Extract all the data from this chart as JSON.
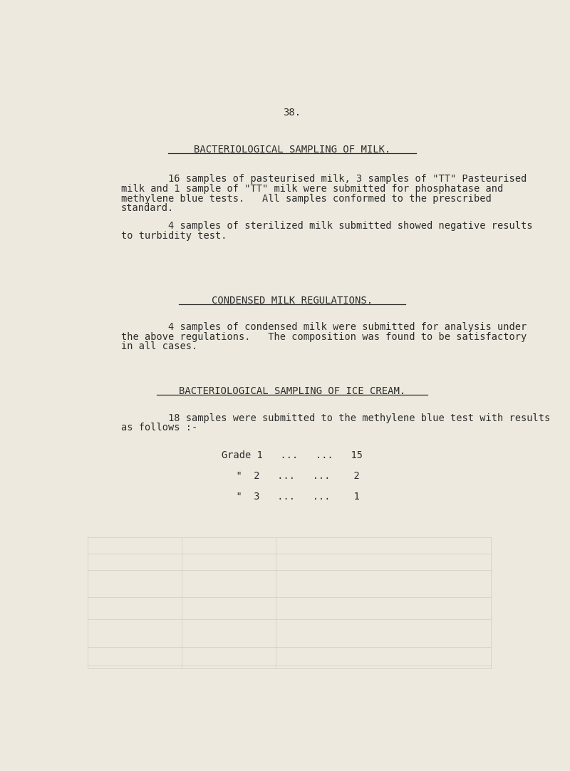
{
  "page_number": "38.",
  "background_color": "#ede9de",
  "text_color": "#2c2c2c",
  "ghost_color": "#c8c4b8",
  "section1_title": "BACTERIOLOGICAL SAMPLING OF MILK.",
  "section1_para1_indent": "        16 samples of pasteurised milk, 3 samples of \"TT\" Pasteurised",
  "section1_para1_rest": [
    "milk and 1 sample of \"TT\" milk were submitted for phosphatase and",
    "methylene blue tests.   All samples conformed to the prescribed",
    "standard."
  ],
  "section1_para2_indent": "        4 samples of sterilized milk submitted showed negative results",
  "section1_para2_rest": [
    "to turbidity test."
  ],
  "section2_title": "CONDENSED MILK REGULATIONS.",
  "section2_para1_indent": "        4 samples of condensed milk were submitted for analysis under",
  "section2_para1_rest": [
    "the above regulations.   The composition was found to be satisfactory",
    "in all cases."
  ],
  "section3_title": "BACTERIOLOGICAL SAMPLING OF ICE CREAM.",
  "section3_para1_indent": "        18 samples were submitted to the methylene blue test with results",
  "section3_para1_rest": [
    "as follows :-"
  ],
  "grade1": "Grade 1   ...   ...   15",
  "grade2": "  \"  2   ...   ...    2",
  "grade3": "  \"  3   ...   ...    1",
  "font_family": "monospace",
  "title_fontsize": 10,
  "body_fontsize": 9.8,
  "page_num_fontsize": 10
}
